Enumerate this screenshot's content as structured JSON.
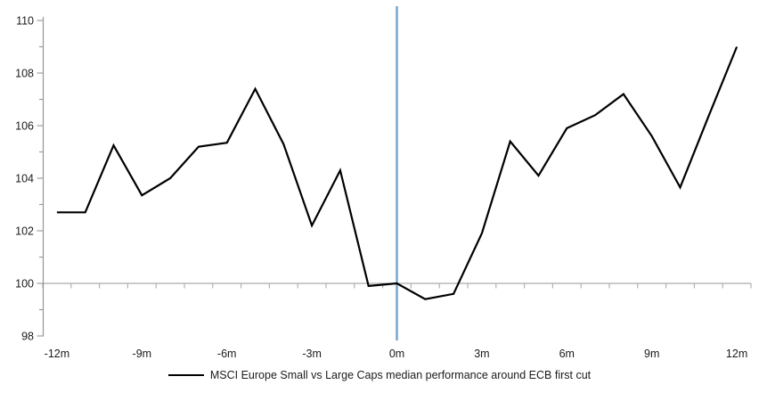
{
  "chart_data": {
    "type": "line",
    "title": "",
    "xlabel": "",
    "ylabel": "",
    "x": [
      -12,
      -11,
      -10,
      -9,
      -8,
      -7,
      -6,
      -5,
      -4,
      -3,
      -2,
      -1,
      0,
      1,
      2,
      3,
      4,
      5,
      6,
      7,
      8,
      9,
      10,
      11,
      12
    ],
    "series": [
      {
        "name": "MSCI Europe Small vs Large Caps median performance around ECB first cut",
        "color": "#000000",
        "values": [
          102.7,
          102.7,
          105.25,
          103.35,
          104.0,
          105.2,
          105.35,
          107.4,
          105.3,
          102.2,
          104.3,
          99.9,
          100.0,
          99.4,
          99.6,
          101.9,
          105.4,
          104.1,
          105.9,
          106.4,
          107.2,
          105.6,
          103.65,
          106.35,
          109.0
        ]
      }
    ],
    "ylim": [
      98,
      110
    ],
    "y_ticks_major": [
      98,
      100,
      102,
      104,
      106,
      108,
      110
    ],
    "y_minor_step": 1,
    "x_tick_values": [
      -12,
      -9,
      -6,
      -3,
      0,
      3,
      6,
      9,
      12
    ],
    "x_tick_labels": [
      "-12m",
      "-9m",
      "-6m",
      "-3m",
      "0m",
      "3m",
      "6m",
      "9m",
      "12m"
    ],
    "baseline_value": 100,
    "event_line": {
      "x_value": 0,
      "color": "#78A4CE"
    },
    "grid": "off",
    "legend_position": "bottom-center"
  },
  "legend": {
    "items": [
      {
        "label": "MSCI Europe Small vs Large Caps median performance around ECB first cut",
        "color": "#000000"
      }
    ]
  },
  "colors": {
    "background": "#FFFFFF",
    "axis": "#969696",
    "baseline": "#ABABAB",
    "series": "#000000",
    "event_line": "#78A4CE",
    "text": "#1A1A1A"
  }
}
